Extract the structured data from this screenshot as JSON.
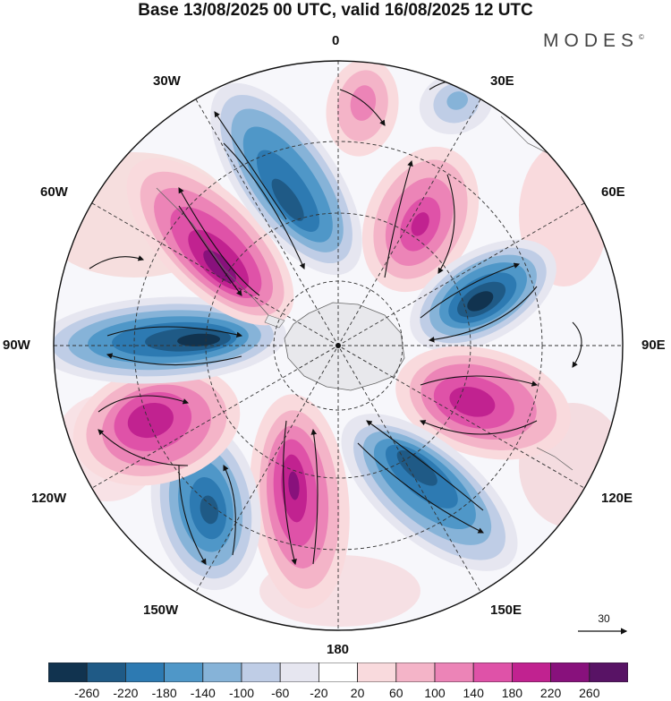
{
  "header": {
    "title": "Base 13/08/2025 00 UTC, valid 16/08/2025 12 UTC",
    "brand": "MODES",
    "brand_mark": "©"
  },
  "map": {
    "projection": "south-polar-stereographic",
    "longitude_labels": {
      "top": "0",
      "tr30": "30E",
      "tr60": "60E",
      "right": "90E",
      "br120": "120E",
      "br150": "150E",
      "bottom": "180",
      "bl150": "150W",
      "bl120": "120W",
      "left": "90W",
      "tl60": "60W",
      "tl30": "30W"
    },
    "wind_reference_label": "30",
    "anomaly_centers": [
      {
        "lon_label": "0",
        "sign": "positive",
        "value": 120
      },
      {
        "lon_label": "30E",
        "sign": "negative",
        "value": -100
      },
      {
        "lon_label": "45E",
        "sign": "positive",
        "value": 200
      },
      {
        "lon_label": "75E",
        "sign": "negative",
        "value": -260
      },
      {
        "lon_label": "110E",
        "sign": "positive",
        "value": 220
      },
      {
        "lon_label": "150E",
        "sign": "negative",
        "value": -220
      },
      {
        "lon_label": "170W",
        "sign": "positive",
        "value": 240
      },
      {
        "lon_label": "135W",
        "sign": "negative",
        "value": -220
      },
      {
        "lon_label": "110W",
        "sign": "positive",
        "value": 220
      },
      {
        "lon_label": "85W",
        "sign": "negative",
        "value": -260
      },
      {
        "lon_label": "55W",
        "sign": "positive",
        "value": 260
      },
      {
        "lon_label": "20W",
        "sign": "negative",
        "value": -220
      }
    ]
  },
  "colorbar": {
    "ticks": [
      "-260",
      "-220",
      "-180",
      "-140",
      "-100",
      "-60",
      "-20",
      "20",
      "60",
      "100",
      "140",
      "180",
      "220",
      "260"
    ],
    "colors": [
      "#11334f",
      "#1f5a86",
      "#2d7ab2",
      "#4f97c8",
      "#86b3d8",
      "#bfcde6",
      "#e6e6f0",
      "#ffffff",
      "#f9dadd",
      "#f4b4c8",
      "#ec84b7",
      "#df52a8",
      "#c12290",
      "#88117c",
      "#581365"
    ]
  }
}
